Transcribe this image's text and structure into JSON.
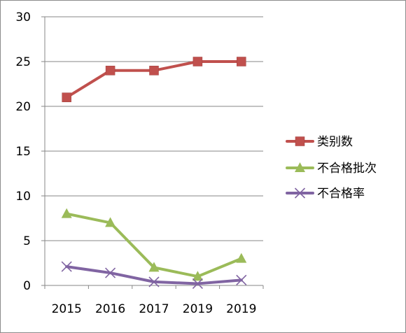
{
  "chart_data": {
    "type": "line",
    "categories": [
      "2015",
      "2016",
      "2017",
      "2019",
      "2019"
    ],
    "ylim": [
      0,
      30
    ],
    "yticks": [
      0,
      5,
      10,
      15,
      20,
      25,
      30
    ],
    "grid": true,
    "legend_position": "right",
    "series": [
      {
        "name": "类别数",
        "values": [
          21,
          24,
          24,
          25,
          25
        ],
        "color": "#c0504d",
        "marker": "square"
      },
      {
        "name": "不合格批次",
        "values": [
          8,
          7,
          2,
          1,
          3
        ],
        "color": "#9bbb59",
        "marker": "triangle"
      },
      {
        "name": "不合格率",
        "values": [
          2.1,
          1.4,
          0.4,
          0.2,
          0.6
        ],
        "color": "#8064a2",
        "marker": "x"
      }
    ]
  }
}
